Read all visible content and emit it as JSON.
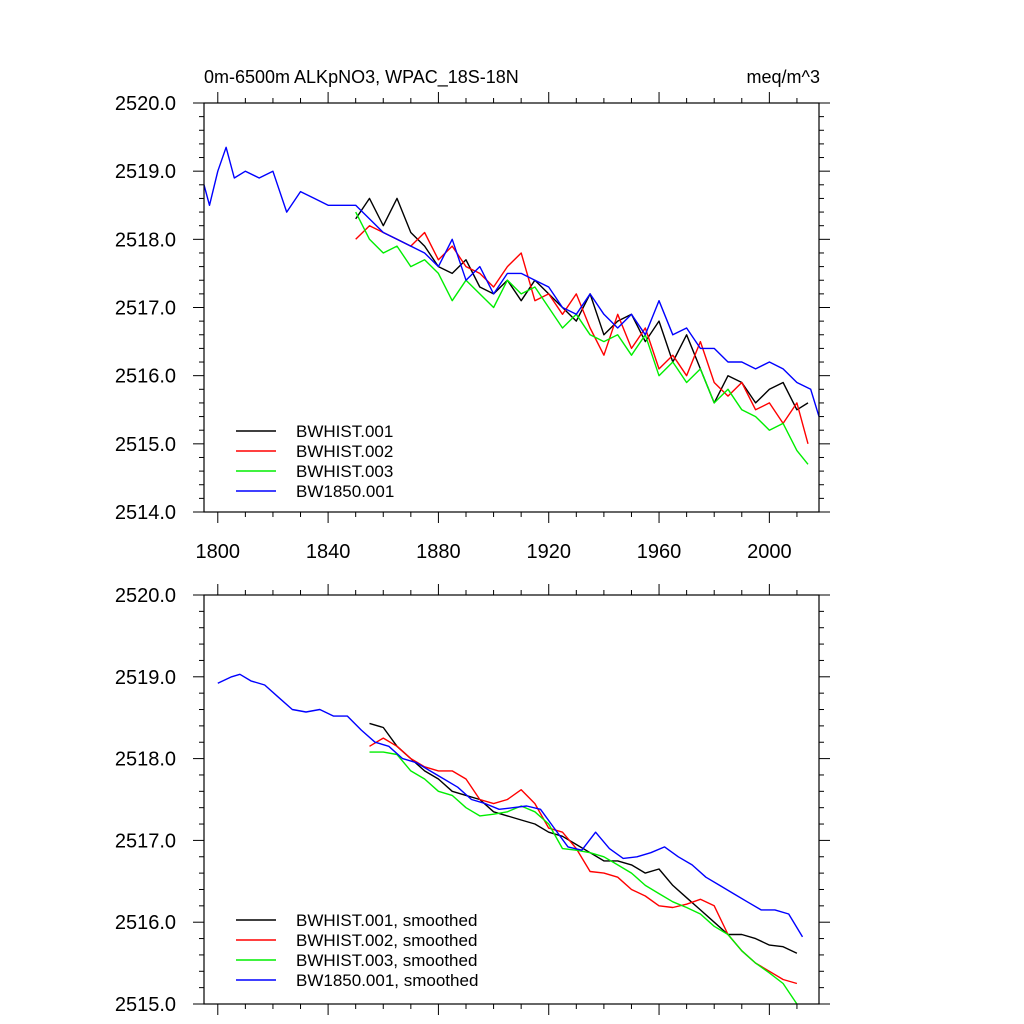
{
  "chart_data": [
    {
      "type": "line",
      "title_left": "0m-6500m ALKpNO3, WPAC_18S-18N",
      "title_right": "meq/m^3",
      "xlim": [
        1795,
        2018
      ],
      "ylim": [
        2514.0,
        2520.0
      ],
      "xticks": [
        1800,
        1840,
        1880,
        1920,
        1960,
        2000
      ],
      "xtick_labels": [
        "1800",
        "1840",
        "1880",
        "1920",
        "1960",
        "2000"
      ],
      "yticks": [
        2514.0,
        2515.0,
        2516.0,
        2517.0,
        2518.0,
        2519.0,
        2520.0
      ],
      "ytick_labels": [
        "2514.0",
        "2515.0",
        "2516.0",
        "2517.0",
        "2518.0",
        "2519.0",
        "2520.0"
      ],
      "legend_position": "bottom-left",
      "series": [
        {
          "name": "BWHIST.001",
          "color": "#000000",
          "x": [
            1850,
            1855,
            1860,
            1865,
            1870,
            1875,
            1880,
            1885,
            1890,
            1895,
            1900,
            1905,
            1910,
            1915,
            1920,
            1925,
            1930,
            1935,
            1940,
            1945,
            1950,
            1955,
            1960,
            1965,
            1970,
            1975,
            1980,
            1985,
            1990,
            1995,
            2000,
            2005,
            2010,
            2014
          ],
          "values": [
            2518.3,
            2518.6,
            2518.2,
            2518.6,
            2518.1,
            2517.9,
            2517.6,
            2517.5,
            2517.7,
            2517.3,
            2517.2,
            2517.4,
            2517.1,
            2517.4,
            2517.2,
            2517.0,
            2516.8,
            2517.2,
            2516.6,
            2516.8,
            2516.9,
            2516.5,
            2516.8,
            2516.2,
            2516.6,
            2516.1,
            2515.6,
            2516.0,
            2515.9,
            2515.6,
            2515.8,
            2515.9,
            2515.5,
            2515.6
          ]
        },
        {
          "name": "BWHIST.002",
          "color": "#ff0000",
          "x": [
            1850,
            1855,
            1860,
            1865,
            1870,
            1875,
            1880,
            1885,
            1890,
            1895,
            1900,
            1905,
            1910,
            1915,
            1920,
            1925,
            1930,
            1935,
            1940,
            1945,
            1950,
            1955,
            1960,
            1965,
            1970,
            1975,
            1980,
            1985,
            1990,
            1995,
            2000,
            2005,
            2010,
            2014
          ],
          "values": [
            2518.0,
            2518.2,
            2518.1,
            2518.0,
            2517.9,
            2518.1,
            2517.7,
            2517.9,
            2517.6,
            2517.5,
            2517.3,
            2517.6,
            2517.8,
            2517.1,
            2517.2,
            2516.9,
            2517.2,
            2516.7,
            2516.3,
            2516.9,
            2516.4,
            2516.7,
            2516.1,
            2516.3,
            2516.0,
            2516.5,
            2515.9,
            2515.7,
            2515.9,
            2515.5,
            2515.6,
            2515.3,
            2515.6,
            2515.0
          ]
        },
        {
          "name": "BWHIST.003",
          "color": "#00ee00",
          "x": [
            1850,
            1855,
            1860,
            1865,
            1870,
            1875,
            1880,
            1885,
            1890,
            1895,
            1900,
            1905,
            1910,
            1915,
            1920,
            1925,
            1930,
            1935,
            1940,
            1945,
            1950,
            1955,
            1960,
            1965,
            1970,
            1975,
            1980,
            1985,
            1990,
            1995,
            2000,
            2005,
            2010,
            2014
          ],
          "values": [
            2518.4,
            2518.0,
            2517.8,
            2517.9,
            2517.6,
            2517.7,
            2517.5,
            2517.1,
            2517.4,
            2517.2,
            2517.0,
            2517.4,
            2517.2,
            2517.3,
            2517.0,
            2516.7,
            2516.9,
            2516.6,
            2516.5,
            2516.6,
            2516.3,
            2516.6,
            2516.0,
            2516.2,
            2515.9,
            2516.1,
            2515.6,
            2515.8,
            2515.5,
            2515.4,
            2515.2,
            2515.3,
            2514.9,
            2514.7
          ]
        },
        {
          "name": "BW1850.001",
          "color": "#0000ff",
          "x": [
            1795,
            1797,
            1800,
            1803,
            1806,
            1810,
            1815,
            1820,
            1825,
            1830,
            1835,
            1840,
            1845,
            1850,
            1855,
            1860,
            1865,
            1870,
            1875,
            1880,
            1885,
            1890,
            1895,
            1900,
            1905,
            1910,
            1915,
            1920,
            1925,
            1930,
            1935,
            1940,
            1945,
            1950,
            1955,
            1960,
            1965,
            1970,
            1975,
            1980,
            1985,
            1990,
            1995,
            2000,
            2005,
            2010,
            2015,
            2018
          ],
          "values": [
            2518.8,
            2518.5,
            2519.0,
            2519.35,
            2518.9,
            2519.0,
            2518.9,
            2519.0,
            2518.4,
            2518.7,
            2518.6,
            2518.5,
            2518.5,
            2518.5,
            2518.3,
            2518.1,
            2518.0,
            2517.9,
            2517.8,
            2517.6,
            2518.0,
            2517.4,
            2517.6,
            2517.2,
            2517.5,
            2517.5,
            2517.4,
            2517.3,
            2517.0,
            2516.9,
            2517.2,
            2516.9,
            2516.7,
            2516.9,
            2516.6,
            2517.1,
            2516.6,
            2516.7,
            2516.4,
            2516.4,
            2516.2,
            2516.2,
            2516.1,
            2516.2,
            2516.1,
            2515.9,
            2515.8,
            2515.4
          ]
        }
      ]
    },
    {
      "type": "line",
      "xlim": [
        1795,
        2018
      ],
      "ylim": [
        2515.0,
        2520.0
      ],
      "xticks": [
        1800,
        1840,
        1880,
        1920,
        1960,
        2000
      ],
      "yticks": [
        2515.0,
        2516.0,
        2517.0,
        2518.0,
        2519.0,
        2520.0
      ],
      "ytick_labels": [
        "2515.0",
        "2516.0",
        "2517.0",
        "2518.0",
        "2519.0",
        "2520.0"
      ],
      "legend_position": "bottom-left",
      "series": [
        {
          "name": "BWHIST.001, smoothed",
          "color": "#000000",
          "x": [
            1855,
            1860,
            1865,
            1870,
            1875,
            1880,
            1885,
            1890,
            1895,
            1900,
            1905,
            1910,
            1915,
            1920,
            1925,
            1930,
            1935,
            1940,
            1945,
            1950,
            1955,
            1960,
            1965,
            1970,
            1975,
            1980,
            1985,
            1990,
            1995,
            2000,
            2005,
            2010
          ],
          "values": [
            2518.43,
            2518.38,
            2518.15,
            2518.0,
            2517.85,
            2517.75,
            2517.6,
            2517.55,
            2517.5,
            2517.35,
            2517.3,
            2517.25,
            2517.2,
            2517.1,
            2517.05,
            2516.95,
            2516.85,
            2516.75,
            2516.75,
            2516.7,
            2516.6,
            2516.65,
            2516.45,
            2516.3,
            2516.15,
            2516.0,
            2515.85,
            2515.85,
            2515.8,
            2515.72,
            2515.7,
            2515.62
          ]
        },
        {
          "name": "BWHIST.002, smoothed",
          "color": "#ff0000",
          "x": [
            1855,
            1860,
            1865,
            1870,
            1875,
            1880,
            1885,
            1890,
            1895,
            1900,
            1905,
            1910,
            1915,
            1920,
            1925,
            1930,
            1935,
            1940,
            1945,
            1950,
            1955,
            1960,
            1965,
            1970,
            1975,
            1980,
            1985,
            1990,
            1995,
            2000,
            2005,
            2010
          ],
          "values": [
            2518.15,
            2518.25,
            2518.15,
            2518.0,
            2517.9,
            2517.85,
            2517.85,
            2517.75,
            2517.5,
            2517.45,
            2517.5,
            2517.62,
            2517.45,
            2517.15,
            2517.1,
            2516.9,
            2516.62,
            2516.6,
            2516.55,
            2516.4,
            2516.32,
            2516.2,
            2516.18,
            2516.22,
            2516.28,
            2516.2,
            2515.85,
            2515.65,
            2515.5,
            2515.4,
            2515.3,
            2515.25
          ]
        },
        {
          "name": "BWHIST.003, smoothed",
          "color": "#00ee00",
          "x": [
            1855,
            1860,
            1865,
            1870,
            1875,
            1880,
            1885,
            1890,
            1895,
            1900,
            1905,
            1910,
            1915,
            1920,
            1925,
            1930,
            1935,
            1940,
            1945,
            1950,
            1955,
            1960,
            1965,
            1970,
            1975,
            1980,
            1985,
            1990,
            1995,
            2000,
            2005,
            2010
          ],
          "values": [
            2518.08,
            2518.08,
            2518.05,
            2517.85,
            2517.75,
            2517.6,
            2517.55,
            2517.4,
            2517.3,
            2517.32,
            2517.35,
            2517.42,
            2517.35,
            2517.2,
            2516.9,
            2516.88,
            2516.85,
            2516.8,
            2516.7,
            2516.6,
            2516.45,
            2516.35,
            2516.25,
            2516.18,
            2516.1,
            2515.95,
            2515.85,
            2515.65,
            2515.5,
            2515.38,
            2515.25,
            2515.0
          ]
        },
        {
          "name": "BW1850.001, smoothed",
          "color": "#0000ff",
          "x": [
            1800,
            1805,
            1808,
            1812,
            1817,
            1822,
            1827,
            1832,
            1837,
            1842,
            1847,
            1852,
            1857,
            1862,
            1867,
            1872,
            1877,
            1882,
            1887,
            1892,
            1897,
            1902,
            1907,
            1912,
            1917,
            1922,
            1927,
            1932,
            1937,
            1942,
            1947,
            1952,
            1957,
            1962,
            1967,
            1972,
            1977,
            1982,
            1987,
            1992,
            1997,
            2002,
            2007,
            2012
          ],
          "values": [
            2518.92,
            2519.0,
            2519.03,
            2518.95,
            2518.9,
            2518.75,
            2518.6,
            2518.57,
            2518.6,
            2518.52,
            2518.52,
            2518.35,
            2518.2,
            2518.15,
            2518.0,
            2517.95,
            2517.85,
            2517.75,
            2517.65,
            2517.5,
            2517.45,
            2517.38,
            2517.4,
            2517.42,
            2517.38,
            2517.15,
            2516.92,
            2516.88,
            2517.1,
            2516.9,
            2516.78,
            2516.8,
            2516.85,
            2516.92,
            2516.8,
            2516.7,
            2516.55,
            2516.45,
            2516.35,
            2516.25,
            2516.15,
            2516.15,
            2516.1,
            2515.82
          ]
        }
      ]
    }
  ]
}
